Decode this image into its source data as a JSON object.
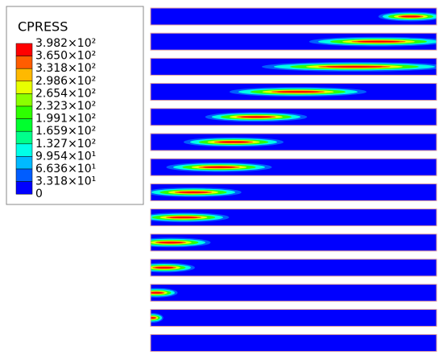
{
  "legend": {
    "title": "CPRESS",
    "labels": [
      "3.982×10²",
      "3.650×10²",
      "3.318×10²",
      "2.986×10²",
      "2.654×10²",
      "2.323×10²",
      "1.991×10²",
      "1.659×10²",
      "1.327×10²",
      "9.954×10¹",
      "6.636×10¹",
      "3.318×10¹",
      "0"
    ],
    "colors": [
      "#ff0000",
      "#ff5d00",
      "#ffb900",
      "#e8ff00",
      "#8bff00",
      "#2eff00",
      "#00ff2e",
      "#00ff8b",
      "#00ffe8",
      "#00b9ff",
      "#005dff",
      "#0000ff"
    ]
  }
}
